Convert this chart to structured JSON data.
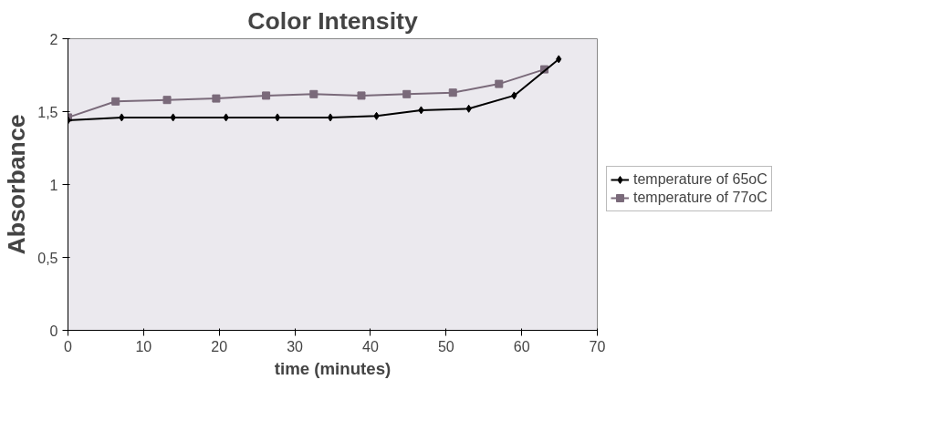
{
  "chart_data": {
    "type": "line",
    "title": "Color Intensity",
    "xlabel": "time (minutes)",
    "ylabel": "Absorbance",
    "xlim": [
      0,
      70
    ],
    "xticks": [
      0,
      10,
      20,
      30,
      40,
      50,
      60,
      70
    ],
    "ylim": [
      0,
      2
    ],
    "yticks": [
      0,
      {
        "value": 0.5,
        "label": "0,5"
      },
      1,
      {
        "value": 1.5,
        "label": "1,5"
      },
      2
    ],
    "grid": false,
    "legend": "right",
    "series": [
      {
        "name": "temperature of 65oC",
        "color": "#000000",
        "marker": "diamond",
        "x": [
          0,
          7.1,
          13.9,
          20.9,
          27.7,
          34.7,
          40.8,
          46.7,
          53,
          59,
          64.9
        ],
        "values": [
          1.44,
          1.46,
          1.46,
          1.46,
          1.46,
          1.46,
          1.47,
          1.51,
          1.52,
          1.61,
          1.86
        ]
      },
      {
        "name": "temperature of 77oC",
        "color": "#7a6a7a",
        "marker": "square",
        "x": [
          0,
          6.3,
          13.1,
          19.6,
          26.2,
          32.5,
          38.8,
          44.8,
          50.9,
          57,
          63
        ],
        "values": [
          1.46,
          1.57,
          1.58,
          1.59,
          1.61,
          1.62,
          1.61,
          1.62,
          1.63,
          1.69,
          1.79
        ]
      }
    ]
  }
}
